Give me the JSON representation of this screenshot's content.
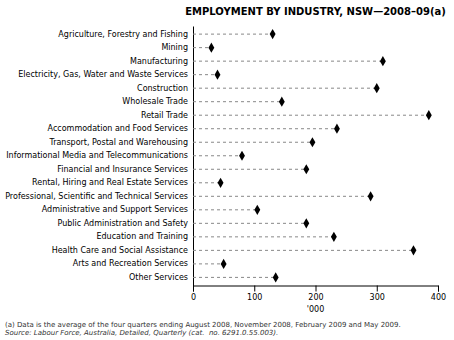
{
  "chart_data": {
    "type": "lollipop",
    "title": "EMPLOYMENT BY INDUSTRY, NSW—2008–09(a)",
    "orientation": "horizontal",
    "categories": [
      "Agriculture, Forestry and Fishing",
      "Mining",
      "Manufacturing",
      "Electricity, Gas, Water and Waste Services",
      "Construction",
      "Wholesale Trade",
      "Retail Trade",
      "Accommodation and Food Services",
      "Transport, Postal and Warehousing",
      "Informational Media and Telecommunications",
      "Financial and Insurance Services",
      "Rental, Hiring and Real Estate Services",
      "Professional, Scientific and Technical Services",
      "Administrative and Support Services",
      "Public Administration and Safety",
      "Education and Training",
      "Health Care and Social Assistance",
      "Arts and Recreation Services",
      "Other Services"
    ],
    "values": [
      130,
      30,
      310,
      40,
      300,
      145,
      385,
      235,
      195,
      80,
      185,
      45,
      290,
      105,
      185,
      230,
      360,
      50,
      135
    ],
    "xlabel": "'000",
    "xlim": [
      0,
      400
    ],
    "xticks": [
      0,
      100,
      200,
      300,
      400
    ],
    "color": "#000000",
    "marker": "diamond",
    "line_style": "dashed",
    "grid": false,
    "annotations": [
      "(a) Data is the average of the four quarters ending August 2008, November 2008, February 2009 and May 2009.",
      "Source: Labour Force, Australia, Detailed, Quarterly (cat.  no. 6291.0.55.003)."
    ]
  }
}
